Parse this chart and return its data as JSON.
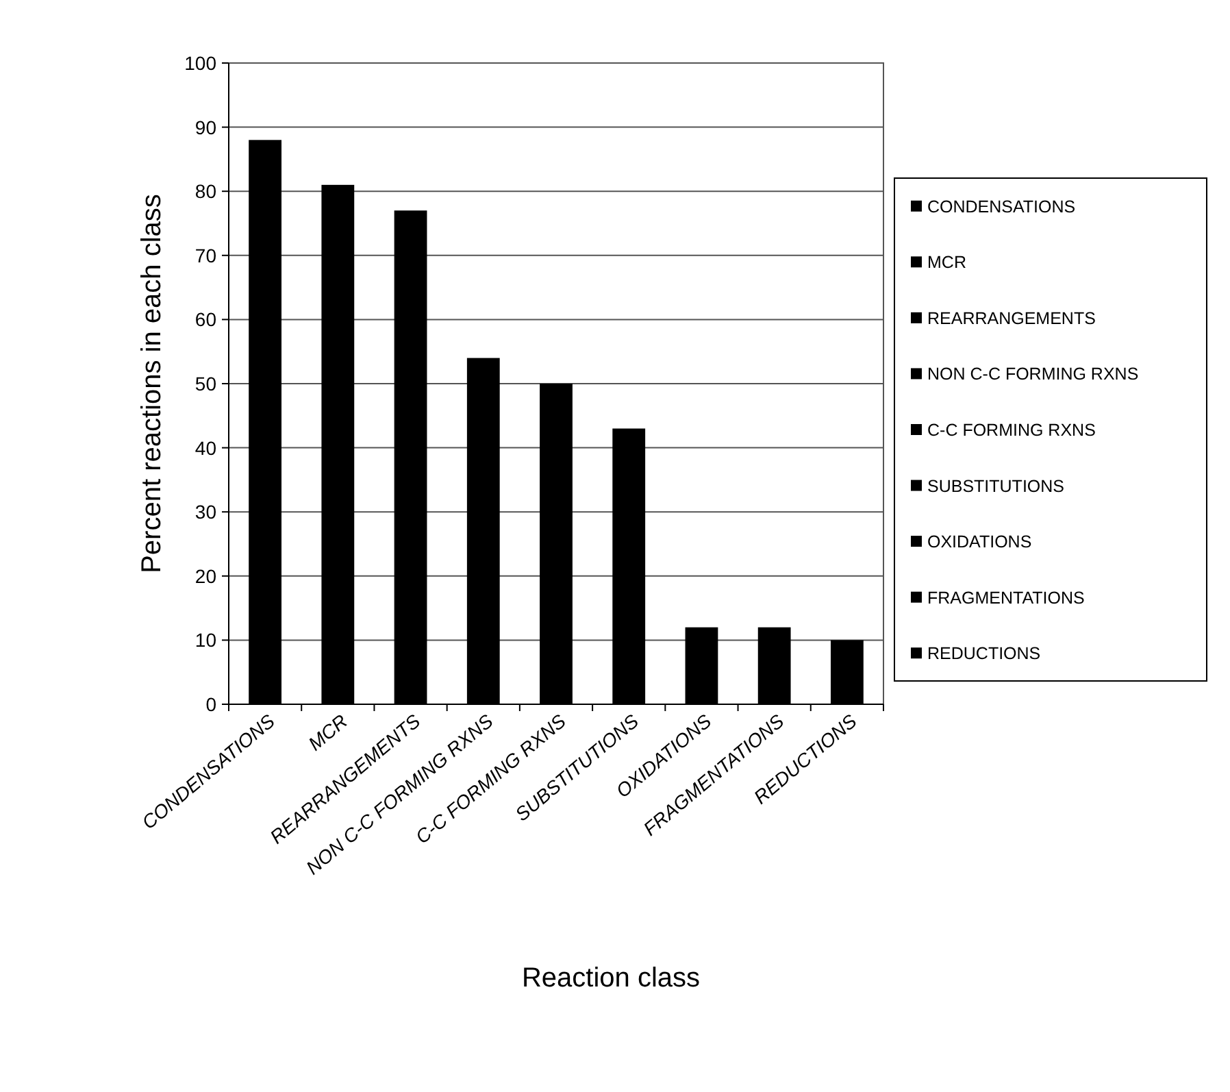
{
  "chart_data": {
    "type": "bar",
    "xlabel": "Reaction class",
    "ylabel": "Percent reactions in each class",
    "categories": [
      "CONDENSATIONS",
      "MCR",
      "REARRANGEMENTS",
      "NON C-C FORMING RXNS",
      "C-C FORMING RXNS",
      "SUBSTITUTIONS",
      "OXIDATIONS",
      "FRAGMENTATIONS",
      "REDUCTIONS"
    ],
    "series": [
      {
        "name": "CONDENSATIONS",
        "color": "#000000",
        "values": [
          88,
          null,
          null,
          null,
          null,
          null,
          null,
          null,
          null
        ]
      },
      {
        "name": "MCR",
        "color": "#000000",
        "values": [
          null,
          81,
          null,
          null,
          null,
          null,
          null,
          null,
          null
        ]
      },
      {
        "name": "REARRANGEMENTS",
        "color": "#000000",
        "values": [
          null,
          null,
          77,
          null,
          null,
          null,
          null,
          null,
          null
        ]
      },
      {
        "name": "NON C-C FORMING RXNS",
        "color": "#000000",
        "values": [
          null,
          null,
          null,
          54,
          null,
          null,
          null,
          null,
          null
        ]
      },
      {
        "name": "C-C FORMING RXNS",
        "color": "#000000",
        "values": [
          null,
          null,
          null,
          null,
          50,
          null,
          null,
          null,
          null
        ]
      },
      {
        "name": "SUBSTITUTIONS",
        "color": "#000000",
        "values": [
          null,
          null,
          null,
          null,
          null,
          43,
          null,
          null,
          null
        ]
      },
      {
        "name": "OXIDATIONS",
        "color": "#000000",
        "values": [
          null,
          null,
          null,
          null,
          null,
          null,
          12,
          null,
          null
        ]
      },
      {
        "name": "FRAGMENTATIONS",
        "color": "#000000",
        "values": [
          null,
          null,
          null,
          null,
          null,
          null,
          null,
          12,
          null
        ]
      },
      {
        "name": "REDUCTIONS",
        "color": "#000000",
        "values": [
          null,
          null,
          null,
          null,
          null,
          null,
          null,
          null,
          10
        ]
      }
    ],
    "ylim": [
      0,
      100
    ],
    "yticks": [
      0,
      10,
      20,
      30,
      40,
      50,
      60,
      70,
      80,
      90,
      100
    ],
    "grid": "y",
    "legend": "right"
  }
}
